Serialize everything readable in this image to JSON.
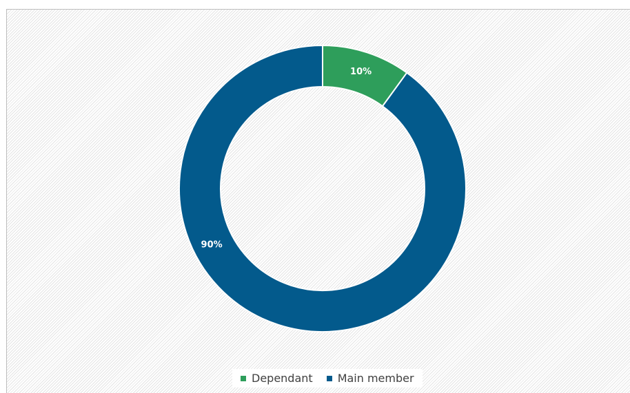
{
  "chart_data": {
    "type": "pie",
    "donut": true,
    "title": "",
    "categories": [
      "Dependant",
      "Main member"
    ],
    "values": [
      10,
      90
    ],
    "labels": [
      "10%",
      "90%"
    ],
    "colors": [
      "#2e9e5b",
      "#035a8c"
    ],
    "legend_position": "bottom"
  }
}
